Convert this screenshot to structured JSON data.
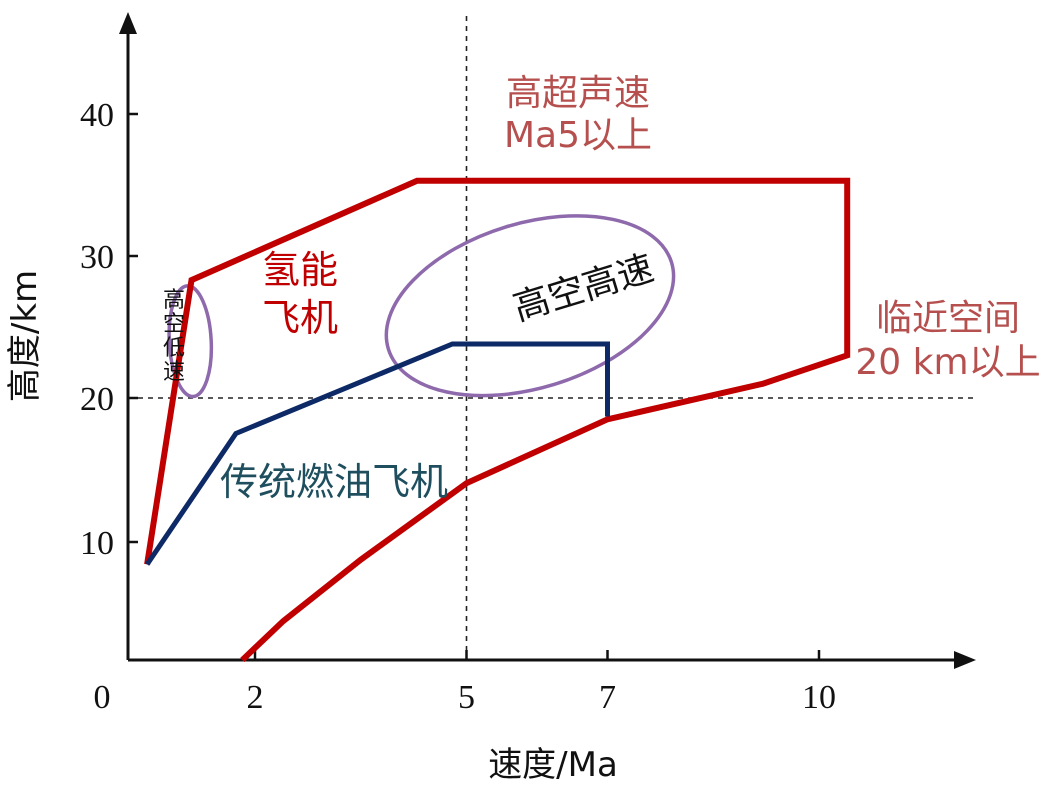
{
  "chart_data": {
    "type": "area",
    "xlabel": "速度/Ma",
    "ylabel": "高度/km",
    "x_ticks": [
      {
        "value": 0,
        "label": "0"
      },
      {
        "value": 2,
        "label": "2"
      },
      {
        "value": 5,
        "label": "5"
      },
      {
        "value": 7,
        "label": "7"
      },
      {
        "value": 10,
        "label": "10"
      }
    ],
    "y_ticks": [
      {
        "value": 10,
        "label": "10"
      },
      {
        "value": 20,
        "label": "20"
      },
      {
        "value": 30,
        "label": "30"
      },
      {
        "value": 40,
        "label": "40"
      }
    ],
    "reference_lines": [
      {
        "axis": "x",
        "value": 5
      },
      {
        "axis": "y",
        "value": 20
      }
    ],
    "series": [
      {
        "name": "氢能飞机",
        "color": "#c00000",
        "points": [
          [
            0.3,
            8.1
          ],
          [
            1.0,
            28.3
          ],
          [
            4.3,
            35.3
          ],
          [
            10.4,
            35.3
          ],
          [
            10.4,
            23.0
          ],
          [
            9.2,
            21.0
          ],
          [
            7.0,
            18.5
          ],
          [
            5.0,
            14.0
          ],
          [
            3.5,
            8.5
          ],
          [
            2.4,
            3.3
          ],
          [
            1.8,
            0.0
          ]
        ]
      },
      {
        "name": "传统燃油飞机",
        "color": "#0d2a66",
        "points": [
          [
            0.3,
            8.1
          ],
          [
            1.7,
            17.5
          ],
          [
            4.8,
            23.8
          ],
          [
            7.0,
            23.8
          ],
          [
            7.0,
            18.7
          ]
        ]
      }
    ],
    "regions": [
      {
        "label": "高空高速",
        "color": "#8e6aad",
        "center": [
          5.9,
          26.5
        ],
        "radius": [
          2.1,
          5.8
        ]
      },
      {
        "label": "高空低速",
        "color": "#8e6aad",
        "center": [
          0.98,
          24.0
        ],
        "radius": [
          0.33,
          3.9
        ]
      }
    ],
    "annotations": [
      {
        "lines": [
          "高超声速",
          "Ma5以上"
        ],
        "color": "#b5504f"
      },
      {
        "lines": [
          "临近空间",
          "20 km以上"
        ],
        "color": "#b5504f"
      },
      {
        "lines": [
          "氢能",
          "飞机"
        ],
        "color": "#c00000"
      },
      {
        "lines": [
          "传统燃油飞机"
        ],
        "color": "#1f4f5f"
      }
    ]
  }
}
